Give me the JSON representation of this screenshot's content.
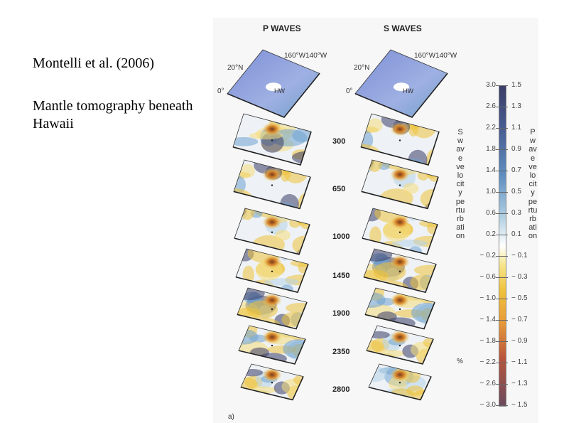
{
  "caption": {
    "title": "Montelli et al. (2006)",
    "description": "Mantle tomography beneath Hawaii"
  },
  "figure": {
    "columns": [
      "P WAVES",
      "S WAVES"
    ],
    "geo_labels": {
      "lat": "20°N",
      "lon": "160°W140°W",
      "equator": "0°",
      "hotspot": "HW"
    },
    "depths": [
      "300",
      "650",
      "1000",
      "1450",
      "1900",
      "2350",
      "2800"
    ],
    "s_axis_label": "S wave velocity perturbation",
    "p_axis_label": "P wave velocity perturbation",
    "unit": "%",
    "s_ticks": [
      "3.0",
      "2.6",
      "2.2",
      "1.8",
      "1.4",
      "1.0",
      "0.6",
      "0.2",
      "− 0.2",
      "− 0.6",
      "− 1.0",
      "− 1.4",
      "− 1.8",
      "− 2.2",
      "− 2.6",
      "− 3.0"
    ],
    "p_ticks": [
      "1.5",
      "1.3",
      "1.1",
      "0.9",
      "0.7",
      "0.5",
      "0.3",
      "0.1",
      "− 0.1",
      "− 0.3",
      "− 0.5",
      "− 0.7",
      "− 0.9",
      "− 1.1",
      "− 1.3",
      "− 1.5"
    ],
    "panel_letter": "a)",
    "colors": {
      "fast": "#3a3c66",
      "neutral": "#ffffff",
      "slow": "#efc23b",
      "very_slow": "#b9553c",
      "surface": "#8fa3d9"
    }
  }
}
